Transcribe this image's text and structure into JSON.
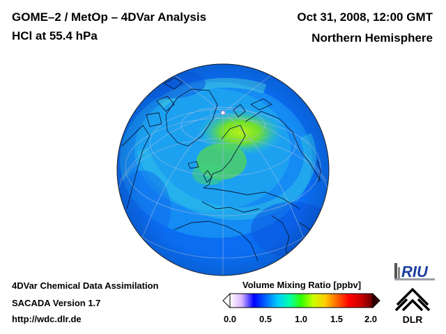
{
  "header": {
    "title_line1": "GOME–2 / MetOp – 4DVar Analysis",
    "title_line2": "HCl at 55.4 hPa",
    "date": "Oct 31, 2008, 12:00 GMT",
    "region": "Northern Hemisphere"
  },
  "footer": {
    "line1": "4DVar Chemical Data Assimilation",
    "line2": "SACADA Version 1.7",
    "line3": "http://wdc.dlr.de"
  },
  "colorbar": {
    "title": "Volume Mixing Ratio [ppbv]",
    "min": 0.0,
    "max": 2.0,
    "ticks": [
      "0.0",
      "0.5",
      "1.0",
      "1.5",
      "2.0"
    ],
    "colors": [
      "#ffffff",
      "#d9b3ff",
      "#0000ff",
      "#0066ff",
      "#00ccff",
      "#00ffaa",
      "#33ff00",
      "#ccff00",
      "#ffcc00",
      "#ff6600",
      "#ff0000",
      "#cc0000",
      "#660000"
    ]
  },
  "map": {
    "projection": "orthographic",
    "dominant_value_ppbv": 0.4,
    "max_value_ppbv": 1.0,
    "colors": {
      "ocean_field": "#0a6df2",
      "low": "#1b9bf5",
      "high": "#8be01f"
    }
  },
  "logos": {
    "riu_text": "RIU",
    "dlr_text": "DLR"
  }
}
